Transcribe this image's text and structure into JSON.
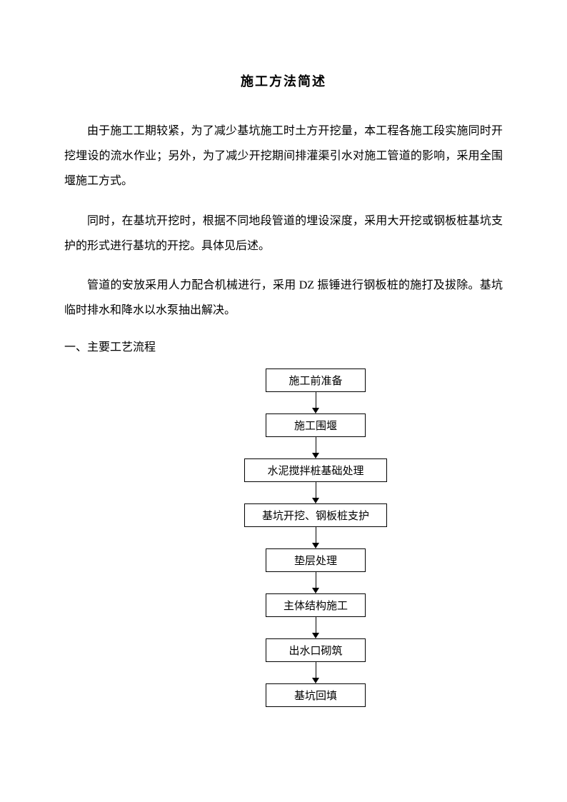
{
  "title": "施工方法简述",
  "paragraphs": {
    "p1": "由于施工工期较紧，为了减少基坑施工时土方开挖量，本工程各施工段实施同时开挖埋设的流水作业；另外，为了减少开挖期间排灌渠引水对施工管道的影响，采用全围堰施工方式。",
    "p2": "同时，在基坑开挖时，根据不同地段管道的埋设深度，采用大开挖或钢板桩基坑支护的形式进行基坑的开挖。具体见后述。",
    "p3": "管道的安放采用人力配合机械进行，采用 DZ 振锤进行钢板桩的施打及拔除。基坑临时排水和降水以水泵抽出解决。"
  },
  "section_heading": "一、主要工艺流程",
  "flowchart": {
    "type": "flowchart",
    "direction": "vertical",
    "box_border_color": "#000000",
    "box_background": "#ffffff",
    "text_color": "#000000",
    "arrow_color": "#000000",
    "font_size": 15,
    "nodes": [
      {
        "id": "n1",
        "label": "施工前准备",
        "wide": false
      },
      {
        "id": "n2",
        "label": "施工围堰",
        "wide": false
      },
      {
        "id": "n3",
        "label": "水泥搅拌桩基础处理",
        "wide": true
      },
      {
        "id": "n4",
        "label": "基坑开挖、钢板桩支护",
        "wide": true
      },
      {
        "id": "n5",
        "label": "垫层处理",
        "wide": false
      },
      {
        "id": "n6",
        "label": "主体结构施工",
        "wide": false
      },
      {
        "id": "n7",
        "label": "出水口砌筑",
        "wide": false
      },
      {
        "id": "n8",
        "label": "基坑回填",
        "wide": false
      }
    ]
  }
}
